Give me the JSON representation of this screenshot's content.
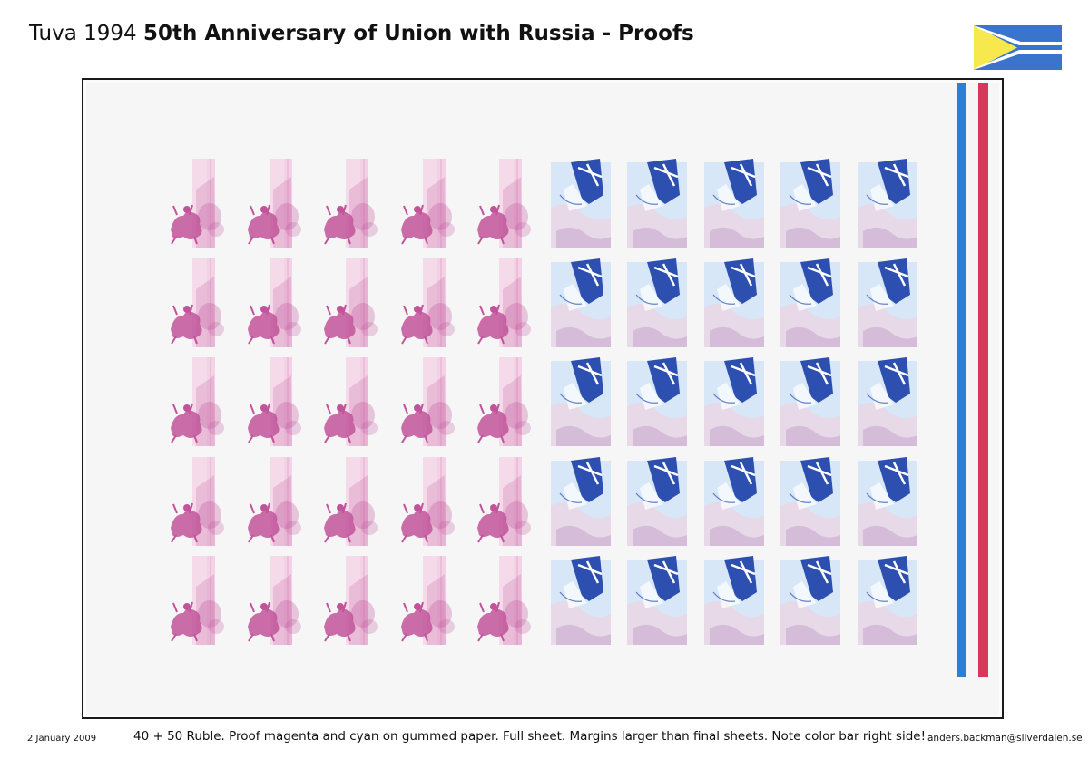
{
  "header": {
    "title_plain": "Tuva 1994 ",
    "title_bold": "50th Anniversary of Union with Russia - Proofs"
  },
  "flag": {
    "colors": {
      "blue": "#3a74cc",
      "white": "#ffffff",
      "yellow": "#f7e94d"
    }
  },
  "sheet": {
    "rows": 5,
    "magenta_columns": 5,
    "cyan_columns": 5,
    "magenta_stamp": {
      "design": "horseman",
      "tint": "#c1539a",
      "bg": "#f4d2e6"
    },
    "cyan_stamp": {
      "design": "flag",
      "tint": "#2d4fb0",
      "bg": "#cfe3f6"
    },
    "color_bar": {
      "blue": "#2a7fd6",
      "red": "#d8375a"
    }
  },
  "footer": {
    "date": "2 January 2009",
    "caption": "40 + 50 Ruble. Proof magenta and cyan on gummed paper. Full sheet. Margins larger than final sheets. Note color bar right side!",
    "email": "anders.backman@silverdalen.se"
  }
}
